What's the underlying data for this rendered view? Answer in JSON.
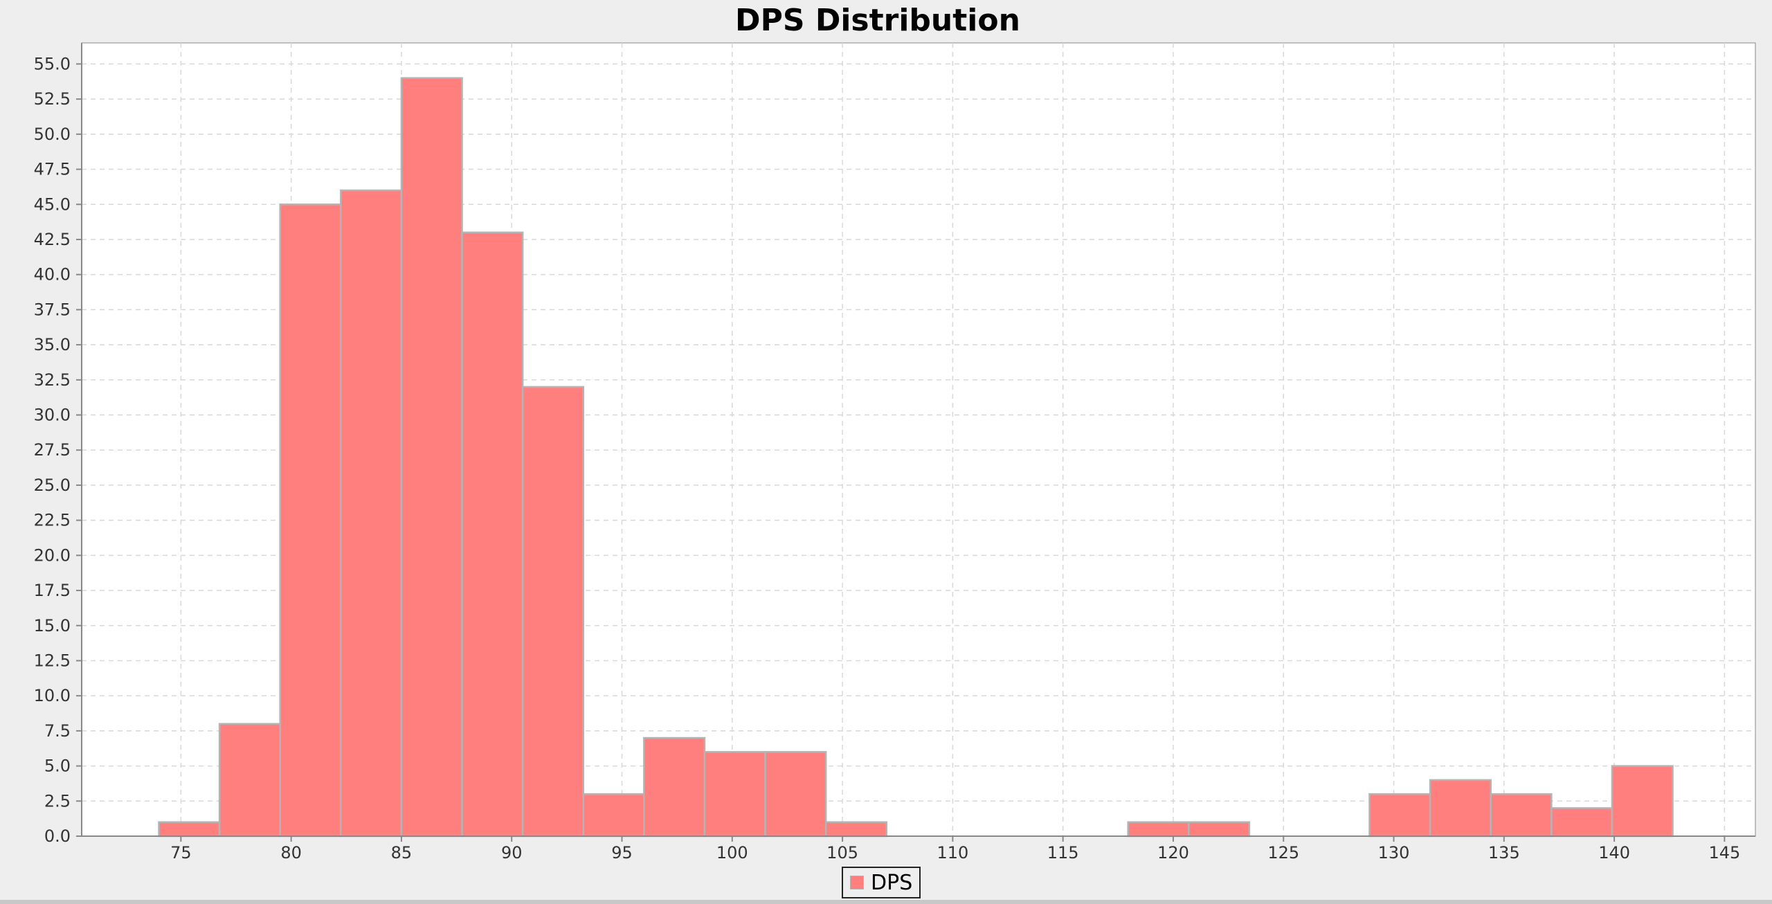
{
  "chart_data": {
    "type": "bar",
    "title": "DPS Distribution",
    "xlabel": "",
    "ylabel": "",
    "bin_width": 2.75,
    "bins": [
      {
        "start": 74.0,
        "count": 1
      },
      {
        "start": 76.75,
        "count": 8
      },
      {
        "start": 79.5,
        "count": 45
      },
      {
        "start": 82.25,
        "count": 46
      },
      {
        "start": 85.0,
        "count": 54
      },
      {
        "start": 87.75,
        "count": 43
      },
      {
        "start": 90.5,
        "count": 32
      },
      {
        "start": 93.25,
        "count": 3
      },
      {
        "start": 96.0,
        "count": 7
      },
      {
        "start": 98.75,
        "count": 6
      },
      {
        "start": 101.5,
        "count": 6
      },
      {
        "start": 104.25,
        "count": 1
      },
      {
        "start": 117.95,
        "count": 1
      },
      {
        "start": 120.7,
        "count": 1
      },
      {
        "start": 128.9,
        "count": 3
      },
      {
        "start": 131.65,
        "count": 4
      },
      {
        "start": 134.4,
        "count": 3
      },
      {
        "start": 137.15,
        "count": 2
      },
      {
        "start": 139.9,
        "count": 5
      }
    ],
    "xlim": [
      70.5,
      146.4
    ],
    "ylim": [
      0,
      56.5
    ],
    "xticks": [
      75,
      80,
      85,
      90,
      95,
      100,
      105,
      110,
      115,
      120,
      125,
      130,
      135,
      140,
      145
    ],
    "yticks": [
      0.0,
      2.5,
      5.0,
      7.5,
      10.0,
      12.5,
      15.0,
      17.5,
      20.0,
      22.5,
      25.0,
      27.5,
      30.0,
      32.5,
      35.0,
      37.5,
      40.0,
      42.5,
      45.0,
      47.5,
      50.0,
      52.5,
      55.0
    ],
    "grid": true,
    "legend": "bottom-center",
    "series": [
      {
        "name": "DPS",
        "color": "#ff7f7f"
      }
    ],
    "plot_bg": "#ffffff",
    "grid_color": "#d8d8d8",
    "bar_edge": "#b4b4b4"
  }
}
